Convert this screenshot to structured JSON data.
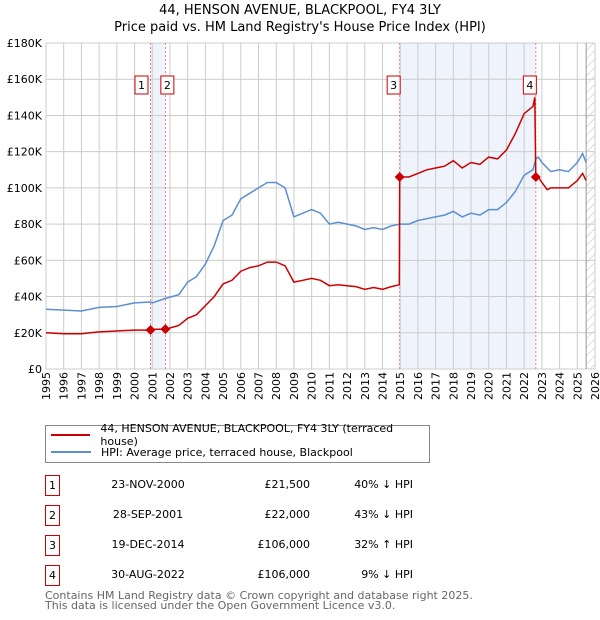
{
  "chart_data": {
    "type": "line",
    "title": "44, HENSON AVENUE, BLACKPOOL, FY4 3LY",
    "subtitle": "Price paid vs. HM Land Registry's House Price Index (HPI)",
    "xlim": [
      1995,
      2026
    ],
    "ylim": [
      0,
      180000
    ],
    "yticks": [
      {
        "v": 0,
        "label": "£0"
      },
      {
        "v": 20000,
        "label": "£20K"
      },
      {
        "v": 40000,
        "label": "£40K"
      },
      {
        "v": 60000,
        "label": "£60K"
      },
      {
        "v": 80000,
        "label": "£80K"
      },
      {
        "v": 100000,
        "label": "£100K"
      },
      {
        "v": 120000,
        "label": "£120K"
      },
      {
        "v": 140000,
        "label": "£140K"
      },
      {
        "v": 160000,
        "label": "£160K"
      },
      {
        "v": 180000,
        "label": "£180K"
      }
    ],
    "xticks": [
      "1995",
      "1996",
      "1997",
      "1998",
      "1999",
      "2000",
      "2001",
      "2002",
      "2003",
      "2004",
      "2005",
      "2006",
      "2007",
      "2008",
      "2009",
      "2010",
      "2011",
      "2012",
      "2013",
      "2014",
      "2015",
      "2016",
      "2017",
      "2018",
      "2019",
      "2020",
      "2021",
      "2022",
      "2023",
      "2024",
      "2025",
      "2026"
    ],
    "series": [
      {
        "name": "HPI: Average price, terraced house, Blackpool",
        "color": "#5b8fd0",
        "x": [
          1995,
          1996,
          1997,
          1998,
          1999,
          2000,
          2000.9,
          2001,
          2001.75,
          2002.5,
          2003,
          2003.5,
          2004,
          2004.5,
          2005,
          2005.5,
          2006,
          2006.5,
          2007,
          2007.5,
          2008,
          2008.5,
          2009,
          2009.5,
          2010,
          2010.5,
          2011,
          2011.5,
          2012,
          2012.5,
          2013,
          2013.5,
          2014,
          2014.5,
          2014.97,
          2015.5,
          2016,
          2016.5,
          2017,
          2017.5,
          2018,
          2018.5,
          2019,
          2019.5,
          2020,
          2020.5,
          2021,
          2021.5,
          2022,
          2022.5,
          2022.66,
          2022.8,
          2023,
          2023.5,
          2024,
          2024.5,
          2025,
          2025.3,
          2025.5
        ],
        "y": [
          33000,
          32500,
          32000,
          34000,
          34500,
          36500,
          37000,
          36500,
          39000,
          41000,
          48000,
          51000,
          58000,
          68000,
          82000,
          85000,
          94000,
          97000,
          100000,
          103000,
          103000,
          100000,
          84000,
          86000,
          88000,
          86000,
          80000,
          81000,
          80000,
          79000,
          77000,
          78000,
          77000,
          79000,
          80000,
          80000,
          82000,
          83000,
          84000,
          85000,
          87000,
          84000,
          86000,
          85000,
          88000,
          88000,
          92000,
          98000,
          107000,
          110000,
          116000,
          117000,
          114000,
          109000,
          110000,
          109000,
          114000,
          119000,
          114000
        ]
      },
      {
        "name": "44, HENSON AVENUE, BLACKPOOL, FY4 3LY (terraced house)",
        "color": "#cc0000",
        "x": [
          1995,
          1996,
          1997,
          1998,
          1999,
          2000,
          2000.9,
          2001,
          2001.75,
          2002.5,
          2003,
          2003.5,
          2004,
          2004.5,
          2005,
          2005.5,
          2006,
          2006.5,
          2007,
          2007.5,
          2008,
          2008.5,
          2009,
          2009.5,
          2010,
          2010.5,
          2011,
          2011.5,
          2012,
          2012.5,
          2013,
          2013.5,
          2014,
          2014.5,
          2014.95,
          2014.97,
          2015.5,
          2016,
          2016.5,
          2017,
          2017.5,
          2018,
          2018.5,
          2019,
          2019.5,
          2020,
          2020.5,
          2021,
          2021.5,
          2022,
          2022.5,
          2022.6,
          2022.66,
          2022.8,
          2023,
          2023.3,
          2023.5,
          2024,
          2024.5,
          2025,
          2025.3,
          2025.5
        ],
        "y": [
          20000,
          19500,
          19500,
          20500,
          21000,
          21500,
          21500,
          22000,
          22000,
          24000,
          28000,
          30000,
          35000,
          40000,
          47000,
          49000,
          54000,
          56000,
          57000,
          59000,
          59000,
          57000,
          48000,
          49000,
          50000,
          49000,
          46000,
          46500,
          46000,
          45500,
          44000,
          45000,
          44000,
          45500,
          46500,
          106000,
          106000,
          108000,
          110000,
          111000,
          112000,
          115000,
          111000,
          114000,
          113000,
          117000,
          116000,
          121000,
          130000,
          141000,
          145000,
          150000,
          106000,
          106000,
          103000,
          99000,
          100000,
          100000,
          100000,
          104000,
          108000,
          104000
        ]
      }
    ],
    "sales": [
      {
        "n": "1",
        "x": 2000.9,
        "y": 21500,
        "date": "23-NOV-2000",
        "price": "£21,500",
        "hpi": "40% ↓ HPI"
      },
      {
        "n": "2",
        "x": 2001.74,
        "y": 22000,
        "date": "28-SEP-2001",
        "price": "£22,000",
        "hpi": "43% ↓ HPI"
      },
      {
        "n": "3",
        "x": 2014.97,
        "y": 106000,
        "date": "19-DEC-2014",
        "price": "£106,000",
        "hpi": "32% ↑ HPI"
      },
      {
        "n": "4",
        "x": 2022.66,
        "y": 106000,
        "date": "30-AUG-2022",
        "price": "£106,000",
        "hpi": "9% ↓ HPI"
      }
    ],
    "shaded": [
      [
        2000.9,
        2001.74
      ],
      [
        2014.97,
        2022.66
      ]
    ],
    "forecast_from": 2025.5
  },
  "footer": {
    "line1": "Contains HM Land Registry data © Crown copyright and database right 2025.",
    "line2": "This data is licensed under the Open Government Licence v3.0."
  }
}
